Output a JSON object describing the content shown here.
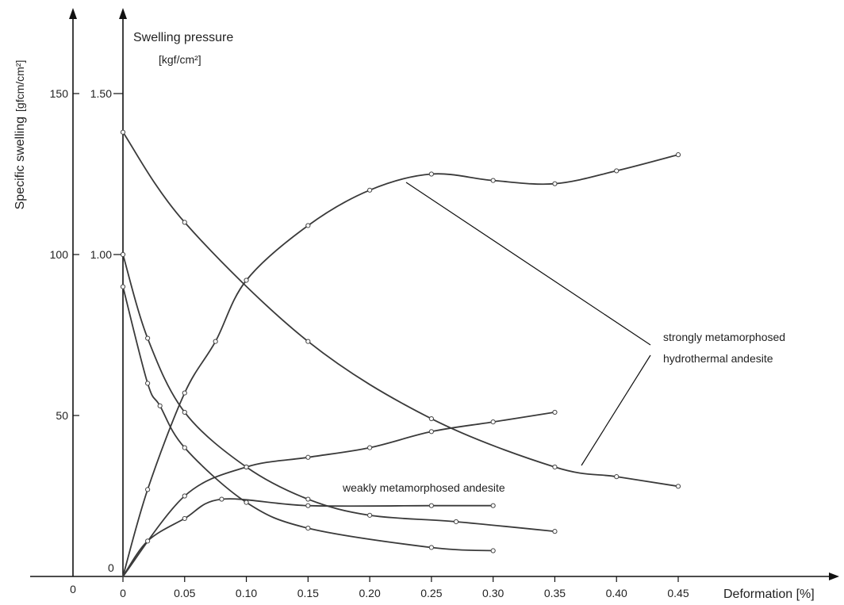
{
  "chart_data": {
    "type": "line",
    "x_axis": {
      "label": "Deformation [%]",
      "ticks": [
        "0",
        "0.05",
        "0.10",
        "0.15",
        "0.20",
        "0.25",
        "0.30",
        "0.35",
        "0.40",
        "0.45"
      ],
      "outer_tick": "0",
      "range": [
        0,
        0.45
      ]
    },
    "left_axis": {
      "label": "Specific swelling",
      "unit": "[gfcm/cm²]",
      "ticks": [
        "50",
        "100",
        "150"
      ],
      "range": [
        0,
        150
      ]
    },
    "right_axis": {
      "label": "Swelling pressure",
      "unit": "[kgf/cm²]",
      "ticks": [
        "0",
        "1.00",
        "1.50"
      ],
      "range": [
        0,
        1.5
      ]
    },
    "annotations": {
      "strong_line1": "strongly metamorphosed",
      "strong_line2": "hydrothermal andesite",
      "weak": "weakly metamorphosed andesite"
    },
    "series": [
      {
        "id": "strong-swelling",
        "axis": "left",
        "x": [
          0,
          0.02,
          0.05,
          0.075,
          0.1,
          0.15,
          0.2,
          0.25,
          0.3,
          0.35,
          0.4,
          0.45
        ],
        "y": [
          0,
          27,
          57,
          73,
          92,
          109,
          120,
          125,
          123,
          122,
          126,
          131
        ]
      },
      {
        "id": "strong-pressure",
        "axis": "right",
        "x": [
          0,
          0.05,
          0.15,
          0.25,
          0.35,
          0.4,
          0.45
        ],
        "y": [
          1.38,
          1.1,
          0.73,
          0.49,
          0.34,
          0.31,
          0.28
        ]
      },
      {
        "id": "weak-swelling-upper",
        "axis": "left",
        "x": [
          0,
          0.05,
          0.1,
          0.15,
          0.2,
          0.25,
          0.3,
          0.35
        ],
        "y": [
          0,
          25,
          34,
          37,
          40,
          45,
          48,
          51
        ]
      },
      {
        "id": "weak-swelling-lower",
        "axis": "left",
        "x": [
          0,
          0.02,
          0.05,
          0.08,
          0.15,
          0.25,
          0.3
        ],
        "y": [
          0,
          11,
          18,
          24,
          22,
          22,
          22
        ]
      },
      {
        "id": "weak-pressure-upper",
        "axis": "right",
        "x": [
          0,
          0.02,
          0.05,
          0.1,
          0.15,
          0.2,
          0.27,
          0.35
        ],
        "y": [
          1.0,
          0.74,
          0.51,
          0.34,
          0.24,
          0.19,
          0.17,
          0.14
        ]
      },
      {
        "id": "weak-pressure-lower",
        "axis": "right",
        "x": [
          0,
          0.02,
          0.03,
          0.05,
          0.1,
          0.15,
          0.25,
          0.3
        ],
        "y": [
          0.9,
          0.6,
          0.53,
          0.4,
          0.23,
          0.15,
          0.09,
          0.08
        ]
      }
    ]
  }
}
